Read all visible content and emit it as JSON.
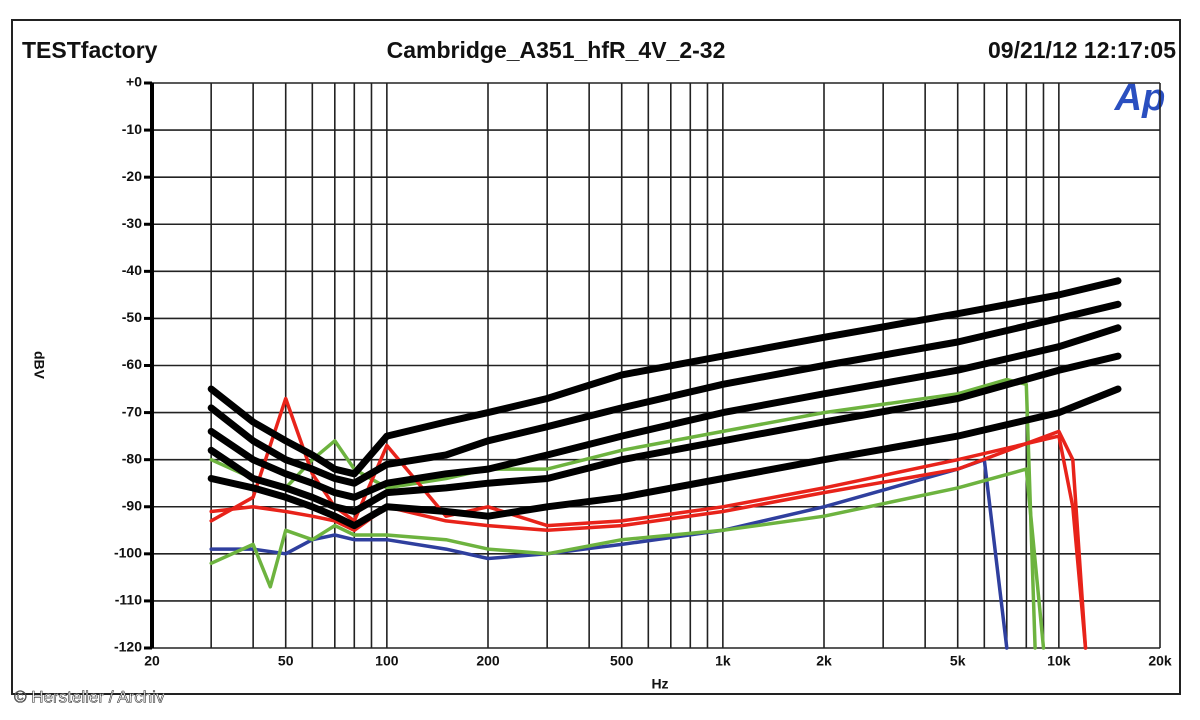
{
  "chart_data": {
    "type": "line",
    "title_left": "TESTfactory",
    "title": "Cambridge_A351_hfR_4V_2-32",
    "title_right": "09/21/12 12:17:05",
    "logo": "Ap",
    "ylabel": "dBV",
    "xlabel": "Hz",
    "credit": "© Hersteller / Archiv",
    "xscale": "log",
    "grid": true,
    "xlim": [
      20,
      20000
    ],
    "ylim": [
      -120,
      0
    ],
    "xticks": [
      20,
      50,
      100,
      200,
      500,
      {
        "value": 1000,
        "label": "1k"
      },
      {
        "value": 2000,
        "label": "2k"
      },
      {
        "value": 5000,
        "label": "5k"
      },
      {
        "value": 10000,
        "label": "10k"
      },
      {
        "value": 20000,
        "label": "20k"
      }
    ],
    "x_minor_ticks": [
      30,
      40,
      60,
      70,
      80,
      90,
      300,
      400,
      600,
      700,
      800,
      900,
      3000,
      4000,
      6000,
      7000,
      8000,
      9000
    ],
    "yticks": [
      {
        "value": 0,
        "label": "+0"
      },
      -10,
      -20,
      -30,
      -40,
      -50,
      -60,
      -70,
      -80,
      -90,
      -100,
      -110,
      -120
    ],
    "series": [
      {
        "color": "#2f3f9e",
        "x": [
          30,
          40,
          50,
          60,
          70,
          80,
          100,
          150,
          200,
          300,
          500,
          1000,
          2000,
          5000,
          6000,
          7000
        ],
        "values": [
          -99,
          -99,
          -100,
          -97,
          -96,
          -97,
          -97,
          -99,
          -101,
          -100,
          -98,
          -95,
          -90,
          -82,
          -80,
          -120
        ]
      },
      {
        "color": "#6db33f",
        "x": [
          30,
          40,
          45,
          50,
          60,
          70,
          80,
          100,
          150,
          200,
          300,
          500,
          1000,
          2000,
          5000,
          8000,
          9000
        ],
        "values": [
          -102,
          -98,
          -107,
          -95,
          -97,
          -94,
          -96,
          -96,
          -97,
          -99,
          -100,
          -97,
          -95,
          -92,
          -86,
          -82,
          -120
        ]
      },
      {
        "color": "#6db33f",
        "x": [
          30,
          40,
          50,
          60,
          70,
          80,
          100,
          150,
          200,
          300,
          500,
          1000,
          2000,
          5000,
          7000,
          8000,
          8500
        ],
        "values": [
          -80,
          -84,
          -86,
          -80,
          -76,
          -82,
          -86,
          -84,
          -82,
          -82,
          -78,
          -74,
          -70,
          -66,
          -63,
          -64,
          -120
        ]
      },
      {
        "color": "#e8231a",
        "x": [
          30,
          40,
          50,
          60,
          70,
          80,
          100,
          150,
          200,
          300,
          500,
          1000,
          2000,
          5000,
          10000,
          11000,
          12000
        ],
        "values": [
          -93,
          -88,
          -67,
          -83,
          -90,
          -93,
          -77,
          -92,
          -90,
          -94,
          -93,
          -90,
          -86,
          -80,
          -75,
          -90,
          -120
        ]
      },
      {
        "color": "#e8231a",
        "x": [
          30,
          40,
          50,
          60,
          70,
          80,
          100,
          150,
          200,
          300,
          500,
          1000,
          2000,
          5000,
          10000,
          11000,
          12000
        ],
        "values": [
          -91,
          -90,
          -91,
          -92,
          -93,
          -95,
          -90,
          -93,
          -94,
          -95,
          -94,
          -91,
          -87,
          -82,
          -74,
          -80,
          -120
        ]
      },
      {
        "color": "#000000",
        "x": [
          30,
          40,
          50,
          60,
          70,
          80,
          100,
          150,
          200,
          300,
          500,
          1000,
          2000,
          5000,
          10000,
          15000
        ],
        "values": [
          -65,
          -72,
          -76,
          -79,
          -82,
          -83,
          -75,
          -72,
          -70,
          -67,
          -62,
          -58,
          -54,
          -49,
          -45,
          -42
        ]
      },
      {
        "color": "#000000",
        "x": [
          30,
          40,
          50,
          60,
          70,
          80,
          100,
          150,
          200,
          300,
          500,
          1000,
          2000,
          5000,
          10000,
          15000
        ],
        "values": [
          -69,
          -76,
          -80,
          -82,
          -84,
          -85,
          -81,
          -79,
          -76,
          -73,
          -69,
          -64,
          -60,
          -55,
          -50,
          -47
        ]
      },
      {
        "color": "#000000",
        "x": [
          30,
          40,
          50,
          60,
          70,
          80,
          100,
          150,
          200,
          300,
          500,
          1000,
          2000,
          5000,
          10000,
          15000
        ],
        "values": [
          -74,
          -80,
          -83,
          -85,
          -87,
          -88,
          -85,
          -83,
          -82,
          -79,
          -75,
          -70,
          -66,
          -61,
          -56,
          -52
        ]
      },
      {
        "color": "#000000",
        "x": [
          30,
          40,
          50,
          60,
          70,
          80,
          100,
          150,
          200,
          300,
          500,
          1000,
          2000,
          5000,
          10000,
          15000
        ],
        "values": [
          -78,
          -84,
          -86,
          -88,
          -90,
          -91,
          -87,
          -86,
          -85,
          -84,
          -80,
          -76,
          -72,
          -67,
          -61,
          -58
        ]
      },
      {
        "color": "#000000",
        "x": [
          30,
          40,
          50,
          60,
          70,
          80,
          100,
          150,
          200,
          300,
          500,
          1000,
          2000,
          5000,
          10000,
          15000
        ],
        "values": [
          -84,
          -86,
          -88,
          -90,
          -92,
          -94,
          -90,
          -91,
          -92,
          -90,
          -88,
          -84,
          -80,
          -75,
          -70,
          -65
        ]
      }
    ]
  }
}
